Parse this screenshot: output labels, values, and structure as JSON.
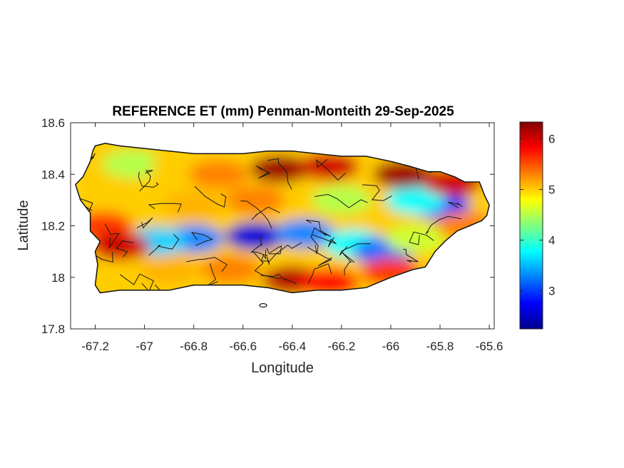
{
  "chart_data": {
    "type": "heatmap",
    "title": "REFERENCE ET (mm) Penman-Monteith 29-Sep-2025",
    "xlabel": "Longitude",
    "ylabel": "Latitude",
    "xlim": [
      -67.3,
      -65.58
    ],
    "ylim": [
      17.8,
      18.6
    ],
    "xticks": [
      -67.2,
      -67,
      -66.8,
      -66.6,
      -66.4,
      -66.2,
      -66,
      -65.8,
      -65.6
    ],
    "xtick_labels": [
      "-67.2",
      "-67",
      "-66.8",
      "-66.6",
      "-66.4",
      "-66.2",
      "-66",
      "-65.8",
      "-65.6"
    ],
    "yticks": [
      17.8,
      18,
      18.2,
      18.4,
      18.6
    ],
    "ytick_labels": [
      "17.8",
      "18",
      "18.2",
      "18.4",
      "18.6"
    ],
    "colorbar": {
      "colormap": "jet",
      "clim": [
        2.25,
        6.33
      ],
      "ticks": [
        3,
        4,
        5,
        6
      ],
      "tick_labels": [
        "3",
        "4",
        "5",
        "6"
      ]
    },
    "grid": false,
    "island_outline": [
      [
        -67.2,
        18.51
      ],
      [
        -67.16,
        18.52
      ],
      [
        -67.1,
        18.51
      ],
      [
        -67.0,
        18.5
      ],
      [
        -66.9,
        18.49
      ],
      [
        -66.8,
        18.48
      ],
      [
        -66.7,
        18.48
      ],
      [
        -66.6,
        18.48
      ],
      [
        -66.5,
        18.49
      ],
      [
        -66.4,
        18.49
      ],
      [
        -66.3,
        18.48
      ],
      [
        -66.2,
        18.47
      ],
      [
        -66.1,
        18.47
      ],
      [
        -66.0,
        18.45
      ],
      [
        -65.92,
        18.43
      ],
      [
        -65.85,
        18.41
      ],
      [
        -65.8,
        18.41
      ],
      [
        -65.74,
        18.39
      ],
      [
        -65.7,
        18.37
      ],
      [
        -65.64,
        18.37
      ],
      [
        -65.62,
        18.32
      ],
      [
        -65.6,
        18.28
      ],
      [
        -65.61,
        18.24
      ],
      [
        -65.63,
        18.22
      ],
      [
        -65.68,
        18.2
      ],
      [
        -65.73,
        18.18
      ],
      [
        -65.78,
        18.14
      ],
      [
        -65.82,
        18.1
      ],
      [
        -65.86,
        18.04
      ],
      [
        -65.91,
        18.03
      ],
      [
        -66.0,
        18.0
      ],
      [
        -66.1,
        17.96
      ],
      [
        -66.2,
        17.95
      ],
      [
        -66.3,
        17.95
      ],
      [
        -66.4,
        17.94
      ],
      [
        -66.5,
        17.96
      ],
      [
        -66.6,
        17.97
      ],
      [
        -66.7,
        17.97
      ],
      [
        -66.8,
        17.97
      ],
      [
        -66.9,
        17.95
      ],
      [
        -67.0,
        17.95
      ],
      [
        -67.1,
        17.95
      ],
      [
        -67.18,
        17.94
      ],
      [
        -67.2,
        17.97
      ],
      [
        -67.19,
        18.05
      ],
      [
        -67.2,
        18.1
      ],
      [
        -67.18,
        18.14
      ],
      [
        -67.22,
        18.18
      ],
      [
        -67.22,
        18.25
      ],
      [
        -67.26,
        18.3
      ],
      [
        -67.28,
        18.36
      ],
      [
        -67.25,
        18.39
      ],
      [
        -67.22,
        18.45
      ],
      [
        -67.21,
        18.49
      ]
    ],
    "value_features": [
      {
        "lon": -67.0,
        "lat": 18.22,
        "value": 5.0
      },
      {
        "lon": -66.55,
        "lat": 18.16,
        "value": 2.6
      },
      {
        "lon": -66.8,
        "lat": 18.15,
        "value": 3.3
      },
      {
        "lon": -66.95,
        "lat": 18.14,
        "value": 3.6
      },
      {
        "lon": -66.35,
        "lat": 18.17,
        "value": 3.3
      },
      {
        "lon": -66.15,
        "lat": 18.13,
        "value": 3.8
      },
      {
        "lon": -66.03,
        "lat": 18.1,
        "value": 3.2
      },
      {
        "lon": -65.8,
        "lat": 18.28,
        "value": 3.0
      },
      {
        "lon": -65.9,
        "lat": 18.3,
        "value": 3.8
      },
      {
        "lon": -66.45,
        "lat": 18.42,
        "value": 6.2
      },
      {
        "lon": -66.25,
        "lat": 18.43,
        "value": 6.0
      },
      {
        "lon": -65.95,
        "lat": 18.4,
        "value": 6.2
      },
      {
        "lon": -65.75,
        "lat": 18.37,
        "value": 6.0
      },
      {
        "lon": -66.4,
        "lat": 17.99,
        "value": 6.1
      },
      {
        "lon": -66.25,
        "lat": 17.98,
        "value": 5.8
      },
      {
        "lon": -66.0,
        "lat": 18.02,
        "value": 5.6
      },
      {
        "lon": -67.17,
        "lat": 18.2,
        "value": 5.6
      },
      {
        "lon": -67.1,
        "lat": 18.12,
        "value": 6.0
      },
      {
        "lon": -67.05,
        "lat": 18.44,
        "value": 4.5
      },
      {
        "lon": -66.85,
        "lat": 18.43,
        "value": 5.0
      },
      {
        "lon": -66.7,
        "lat": 18.4,
        "value": 5.3
      },
      {
        "lon": -66.2,
        "lat": 18.3,
        "value": 4.5
      },
      {
        "lon": -66.55,
        "lat": 18.3,
        "value": 5.3
      },
      {
        "lon": -66.8,
        "lat": 18.28,
        "value": 5.1
      },
      {
        "lon": -65.7,
        "lat": 18.2,
        "value": 5.3
      },
      {
        "lon": -65.9,
        "lat": 18.15,
        "value": 4.6
      },
      {
        "lon": -66.65,
        "lat": 18.03,
        "value": 5.3
      },
      {
        "lon": -66.9,
        "lat": 18.03,
        "value": 5.1
      }
    ]
  }
}
